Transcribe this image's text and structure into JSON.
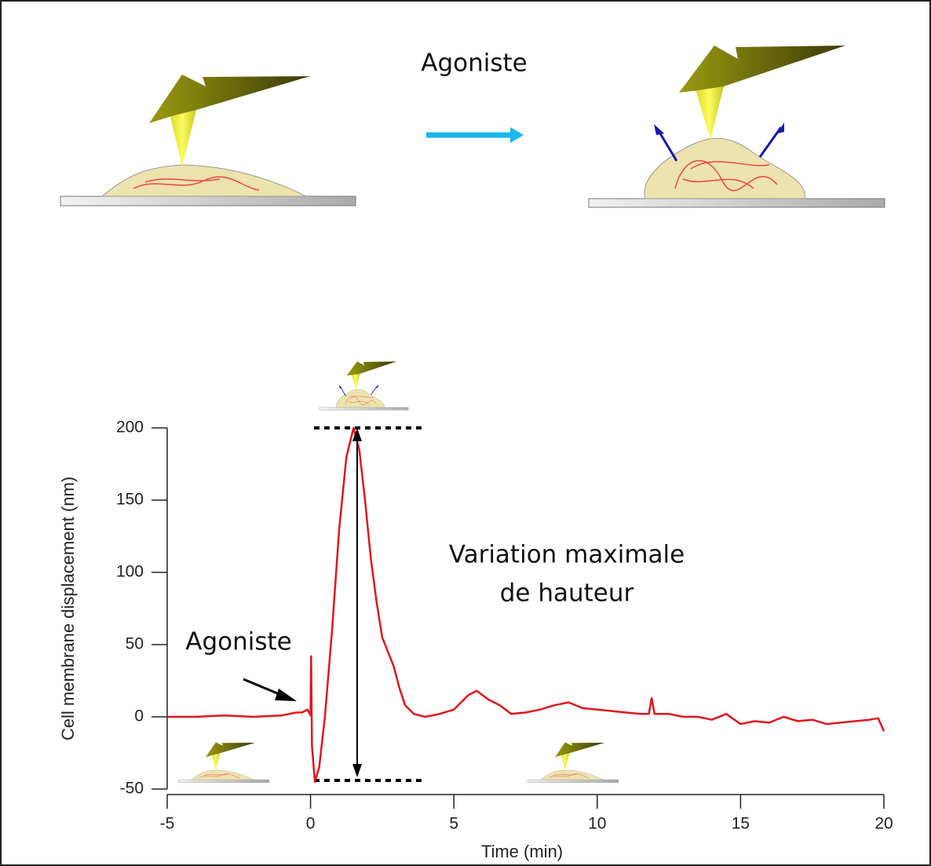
{
  "chart_data": {
    "type": "line",
    "top_label": "Agoniste",
    "annotations": [
      "Agoniste",
      "Variation maximale",
      "de hauteur"
    ],
    "xlabel": "Time (min)",
    "ylabel": "Cell membrane displacement (nm)",
    "color": "#e0161c",
    "x": [
      -5,
      -4,
      -3,
      -2,
      -1,
      -0.5,
      -0.3,
      -0.1,
      0,
      0.02,
      0.05,
      0.15,
      0.3,
      0.5,
      0.75,
      1,
      1.25,
      1.5,
      1.7,
      1.9,
      2.1,
      2.3,
      2.5,
      2.7,
      2.9,
      3.1,
      3.3,
      3.6,
      4,
      4.5,
      5,
      5.5,
      5.8,
      6.2,
      6.6,
      7,
      7.5,
      8,
      8.5,
      9,
      9.5,
      10,
      10.5,
      11,
      11.5,
      11.8,
      11.9,
      12,
      12.5,
      13,
      13.5,
      14,
      14.5,
      15,
      15.5,
      16,
      16.5,
      17,
      17.5,
      18,
      18.5,
      19,
      19.5,
      19.8,
      20
    ],
    "values": [
      0,
      0,
      1,
      0,
      1,
      3,
      3,
      5,
      1,
      42,
      -20,
      -45,
      -35,
      0,
      60,
      130,
      180,
      200,
      185,
      150,
      110,
      80,
      55,
      45,
      35,
      20,
      8,
      2,
      0,
      2,
      5,
      15,
      18,
      12,
      8,
      2,
      3,
      5,
      8,
      10,
      6,
      5,
      4,
      3,
      2,
      2,
      13,
      2,
      2,
      0,
      0,
      -2,
      2,
      -5,
      -3,
      -4,
      0,
      -3,
      -2,
      -5,
      -4,
      -3,
      -2,
      -1,
      -10
    ],
    "xlim": [
      -5,
      20
    ],
    "xticks": [
      -5,
      0,
      5,
      10,
      15,
      20
    ],
    "ylim": [
      -50,
      200
    ],
    "yticks": [
      -50,
      0,
      50,
      100,
      150,
      200
    ]
  }
}
